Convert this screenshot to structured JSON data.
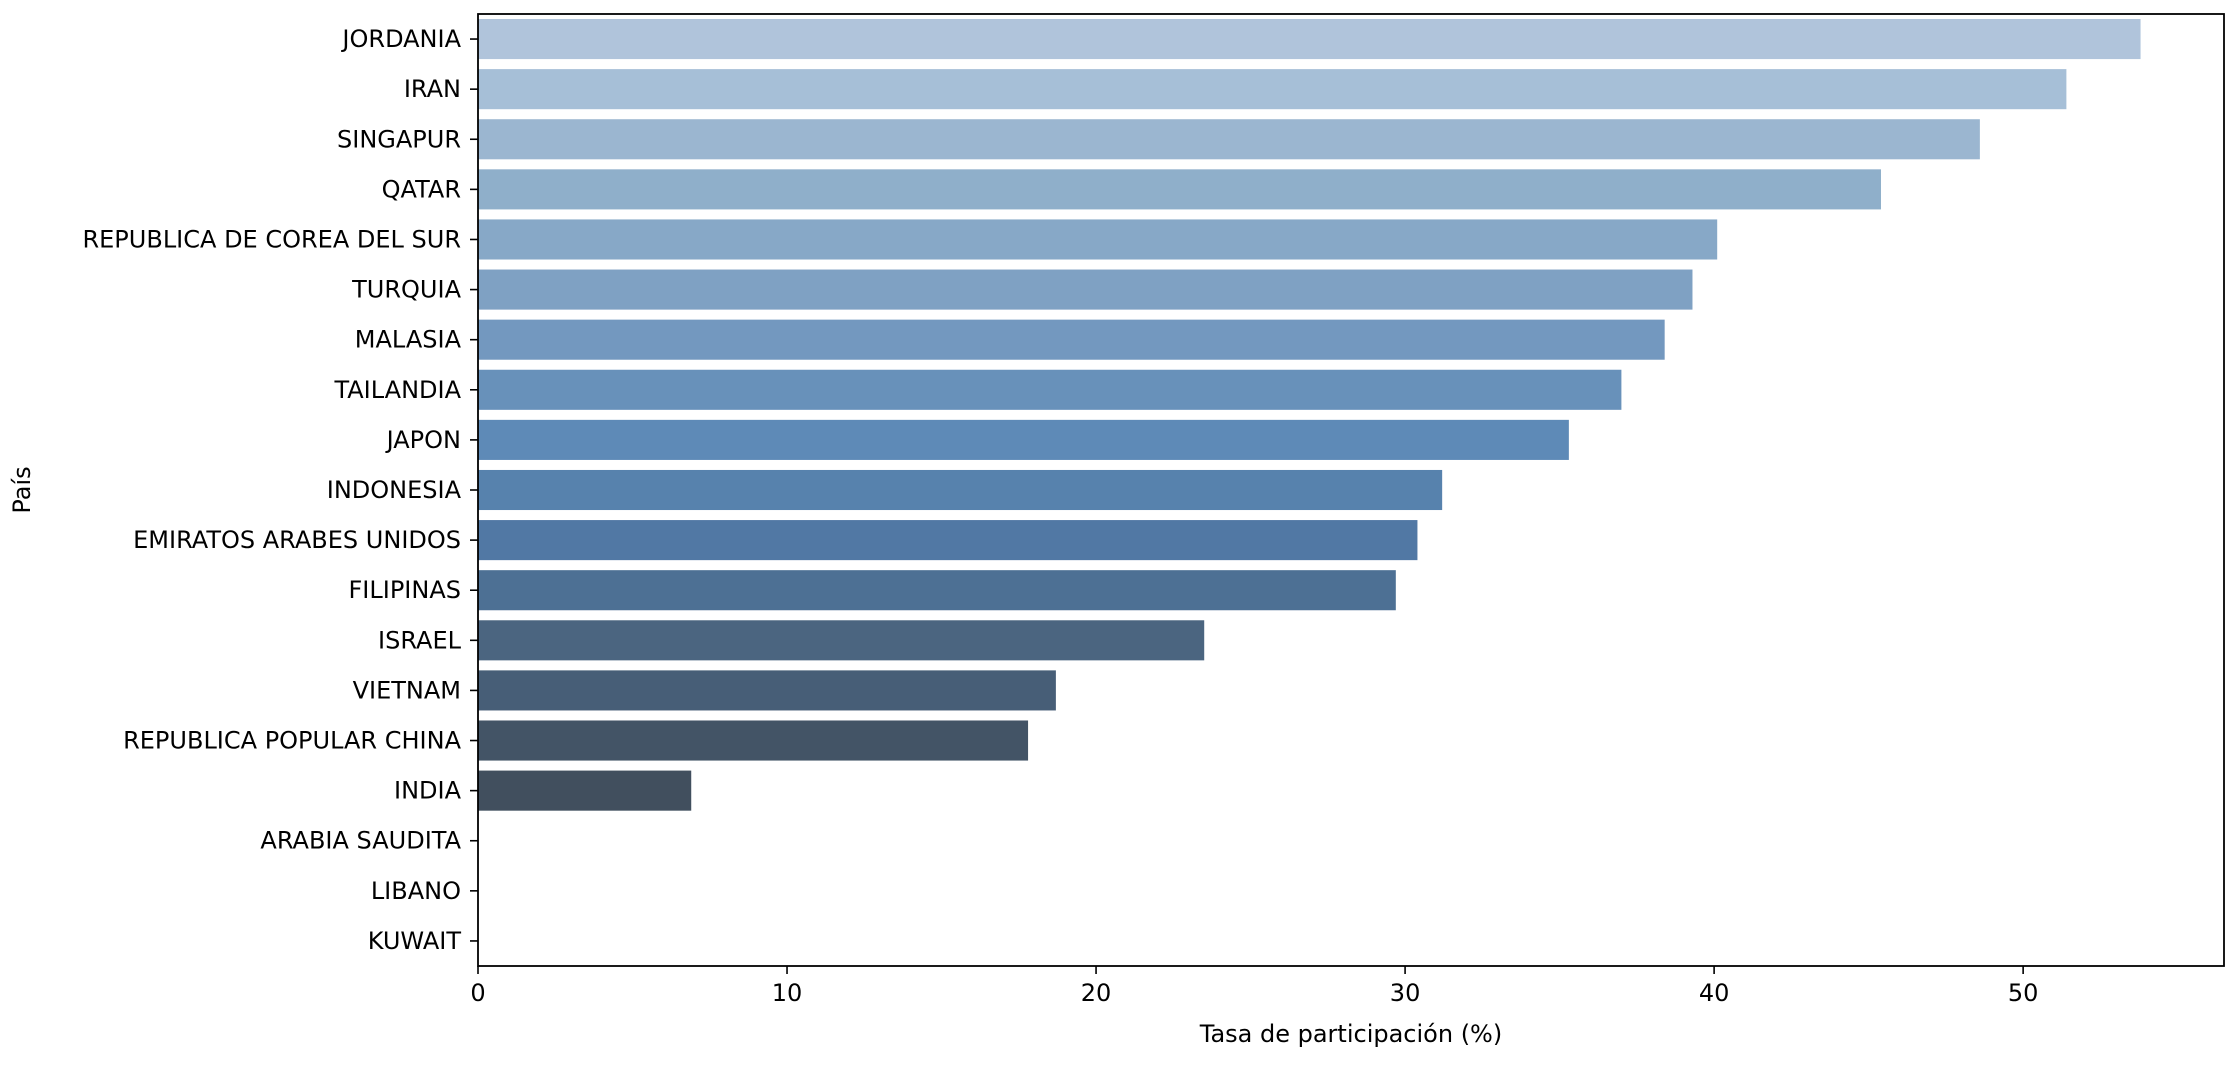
{
  "chart_data": {
    "type": "bar",
    "orientation": "horizontal",
    "title": "",
    "xlabel": "Tasa de participación (%)",
    "ylabel": "País",
    "xlim": [
      0,
      56.5
    ],
    "xticks": [
      0,
      10,
      20,
      30,
      40,
      50
    ],
    "grid": false,
    "legend": "none",
    "categories": [
      "JORDANIA",
      "IRAN",
      "SINGAPUR",
      "QATAR",
      "REPUBLICA DE COREA DEL SUR",
      "TURQUIA",
      "MALASIA",
      "TAILANDIA",
      "JAPON",
      "INDONESIA",
      "EMIRATOS ARABES UNIDOS",
      "FILIPINAS",
      "ISRAEL",
      "VIETNAM",
      "REPUBLICA POPULAR CHINA",
      "INDIA",
      "ARABIA SAUDITA",
      "LIBANO",
      "KUWAIT"
    ],
    "values": [
      53.8,
      51.4,
      48.6,
      45.4,
      40.1,
      39.3,
      38.4,
      37.0,
      35.3,
      31.2,
      30.4,
      29.7,
      23.5,
      18.7,
      17.8,
      6.9,
      0,
      0,
      0
    ],
    "colors": [
      "#b0c4db",
      "#a6bfd7",
      "#9bb6d0",
      "#8fafca",
      "#87a8c7",
      "#7fa1c3",
      "#7398bf",
      "#6891ba",
      "#5e8ab7",
      "#5782ad",
      "#5178a4",
      "#4d7094",
      "#4b6580",
      "#475e77",
      "#435466",
      "#414f5e",
      "#3b4652",
      "#363f48",
      "#303840"
    ]
  }
}
